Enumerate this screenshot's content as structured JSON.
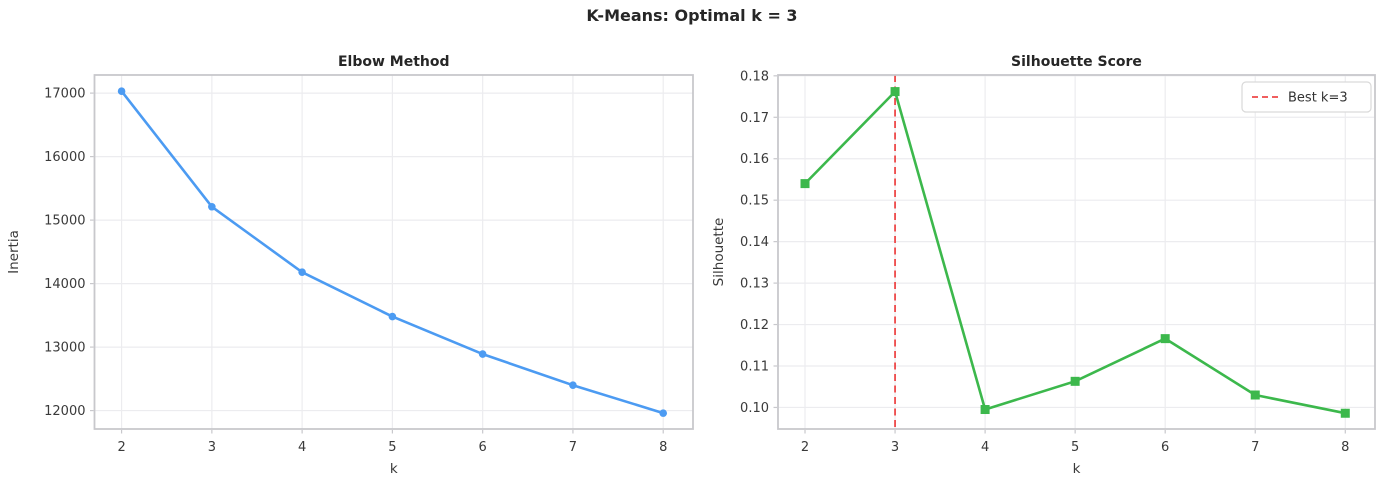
{
  "figure": {
    "title": "K-Means: Optimal k = 3"
  },
  "colors": {
    "background": "#ffffff",
    "line_blue": "#4c9bf2",
    "line_green": "#3cb84c",
    "vline_red": "#ee4848",
    "grid": "#ececef",
    "frame": "#c8c8cc",
    "tick_text": "#3a3a3a",
    "title_text": "#262626",
    "legend_border": "#d9d9d9",
    "legend_text": "#333333"
  },
  "chart_data": [
    {
      "type": "line",
      "title": "Elbow Method",
      "xlabel": "k",
      "ylabel": "Inertia",
      "x": [
        2,
        3,
        4,
        5,
        6,
        7,
        8
      ],
      "series": [
        {
          "name": "Inertia",
          "values": [
            17030,
            15210,
            14180,
            13480,
            12890,
            12400,
            11960
          ],
          "marker": "circle",
          "color": "line_blue"
        }
      ],
      "xlim": [
        1.7,
        8.33
      ],
      "ylim": [
        11710,
        17285
      ],
      "xticks": [
        2,
        3,
        4,
        5,
        6,
        7,
        8
      ],
      "xtick_labels": [
        "2",
        "3",
        "4",
        "5",
        "6",
        "7",
        "8"
      ],
      "yticks": [
        12000,
        13000,
        14000,
        15000,
        16000,
        17000
      ],
      "ytick_labels": [
        "12000",
        "13000",
        "14000",
        "15000",
        "16000",
        "17000"
      ],
      "grid": true,
      "legend": null,
      "vline": null
    },
    {
      "type": "line",
      "title": "Silhouette Score",
      "xlabel": "k",
      "ylabel": "Silhouette",
      "x": [
        2,
        3,
        4,
        5,
        6,
        7,
        8
      ],
      "series": [
        {
          "name": "Silhouette",
          "values": [
            0.154,
            0.1762,
            0.0995,
            0.1063,
            0.1166,
            0.103,
            0.0986
          ],
          "marker": "square",
          "color": "line_green"
        }
      ],
      "xlim": [
        1.7,
        8.33
      ],
      "ylim": [
        0.0948,
        0.1802
      ],
      "xticks": [
        2,
        3,
        4,
        5,
        6,
        7,
        8
      ],
      "xtick_labels": [
        "2",
        "3",
        "4",
        "5",
        "6",
        "7",
        "8"
      ],
      "yticks": [
        0.1,
        0.11,
        0.12,
        0.13,
        0.14,
        0.15,
        0.16,
        0.17,
        0.18
      ],
      "ytick_labels": [
        "0.10",
        "0.11",
        "0.12",
        "0.13",
        "0.14",
        "0.15",
        "0.16",
        "0.17",
        "0.18"
      ],
      "grid": true,
      "vline": {
        "x": 3,
        "color": "vline_red",
        "label": "Best k=3"
      },
      "legend": {
        "position": "top-right",
        "entries": [
          {
            "label": "Best k=3",
            "color": "vline_red",
            "dashed": true
          }
        ]
      }
    }
  ]
}
